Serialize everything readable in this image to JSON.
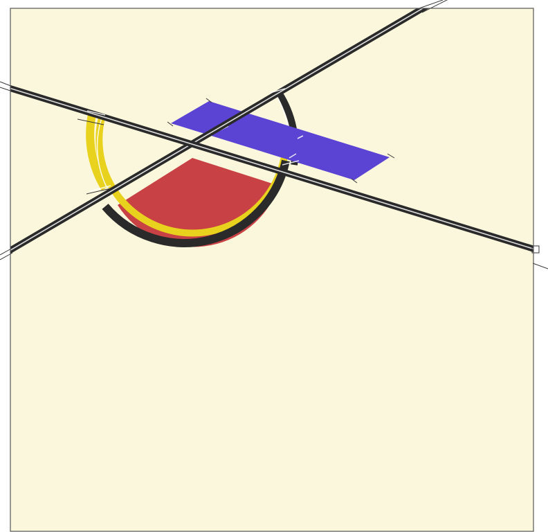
{
  "artwork": {
    "colors": {
      "background": "#fbf7dc",
      "frame": "#555555",
      "black": "#2a2a2a",
      "yellow": "#e8d21e",
      "red": "#c84145",
      "blue": "#5b44d3",
      "white": "#ffffff"
    },
    "elements": [
      "canvas-frame",
      "red-half-disc",
      "half-ring",
      "blue-bar",
      "diagonal-line-rising",
      "diagonal-line-falling"
    ]
  }
}
